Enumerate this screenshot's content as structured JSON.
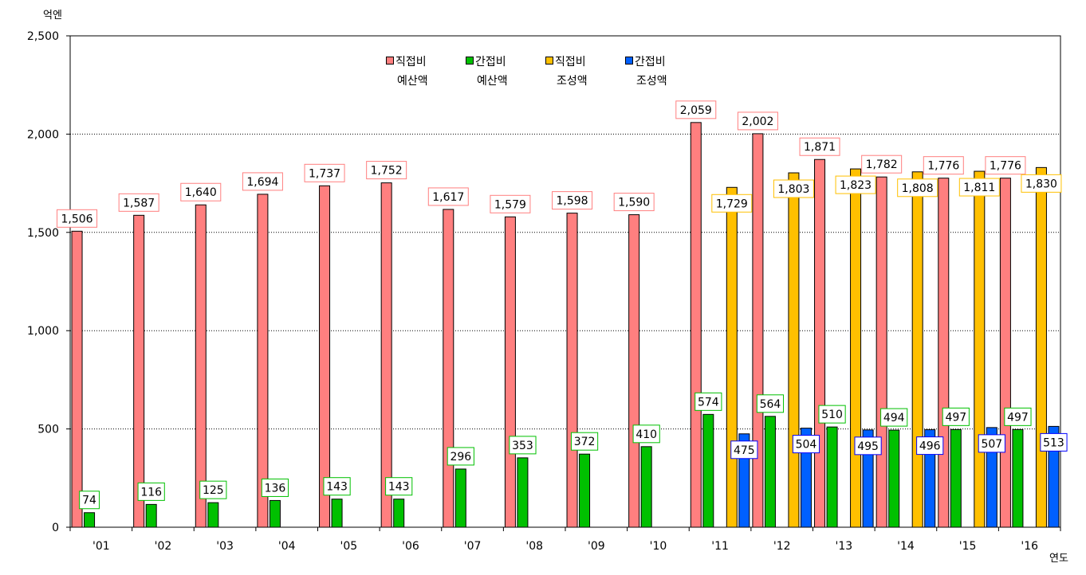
{
  "y_unit": "억엔",
  "x_unit": "연도",
  "chart_data": {
    "type": "bar",
    "categories": [
      "'01",
      "'02",
      "'03",
      "'04",
      "'05",
      "'06",
      "'07",
      "'08",
      "'09",
      "'10",
      "'11",
      "'12",
      "'13",
      "'14",
      "'15",
      "'16"
    ],
    "series": [
      {
        "name": "직접비 예산액",
        "name_lines": [
          "직접비",
          "예산액"
        ],
        "color": "#ff7f7f",
        "values": [
          1506,
          1587,
          1640,
          1694,
          1737,
          1752,
          1617,
          1579,
          1598,
          1590,
          2059,
          2002,
          1871,
          1782,
          1776,
          1776
        ],
        "labels": [
          "1,506",
          "1,587",
          "1,640",
          "1,694",
          "1,737",
          "1,752",
          "1,617",
          "1,579",
          "1,598",
          "1,590",
          "2,059",
          "2,002",
          "1,871",
          "1,782",
          "1,776",
          "1,776"
        ],
        "label_border": "#ff7f7f"
      },
      {
        "name": "간접비 예산액",
        "name_lines": [
          "간접비",
          "예산액"
        ],
        "color": "#00c000",
        "values": [
          74,
          116,
          125,
          136,
          143,
          143,
          296,
          353,
          372,
          410,
          574,
          564,
          510,
          494,
          497,
          497
        ],
        "labels": [
          "74",
          "116",
          "125",
          "136",
          "143",
          "143",
          "296",
          "353",
          "372",
          "410",
          "574",
          "564",
          "510",
          "494",
          "497",
          "497"
        ],
        "label_border": "#00c000"
      },
      {
        "name": "직접비 조성액",
        "name_lines": [
          "직접비",
          "조성액"
        ],
        "color": "#ffc000",
        "values": [
          null,
          null,
          null,
          null,
          null,
          null,
          null,
          null,
          null,
          null,
          1729,
          1803,
          1823,
          1808,
          1811,
          1830
        ],
        "labels": [
          null,
          null,
          null,
          null,
          null,
          null,
          null,
          null,
          null,
          null,
          "1,729",
          "1,803",
          "1,823",
          "1,808",
          "1,811",
          "1,830"
        ],
        "label_border": "#ffc000"
      },
      {
        "name": "간접비 조성액",
        "name_lines": [
          "간접비",
          "조성액"
        ],
        "color": "#0060ff",
        "values": [
          null,
          null,
          null,
          null,
          null,
          null,
          null,
          null,
          null,
          null,
          475,
          504,
          495,
          496,
          507,
          513
        ],
        "labels": [
          null,
          null,
          null,
          null,
          null,
          null,
          null,
          null,
          null,
          null,
          "475",
          "504",
          "495",
          "496",
          "507",
          "513"
        ],
        "label_border": "#0000ff"
      }
    ],
    "y_ticks": [
      0,
      500,
      1000,
      1500,
      2000,
      2500
    ],
    "y_tick_labels": [
      "0",
      "500",
      "1,000",
      "1,500",
      "2,000",
      "2,500"
    ],
    "ylim": [
      0,
      2500
    ],
    "grid": true,
    "legend_position": "top-center"
  }
}
